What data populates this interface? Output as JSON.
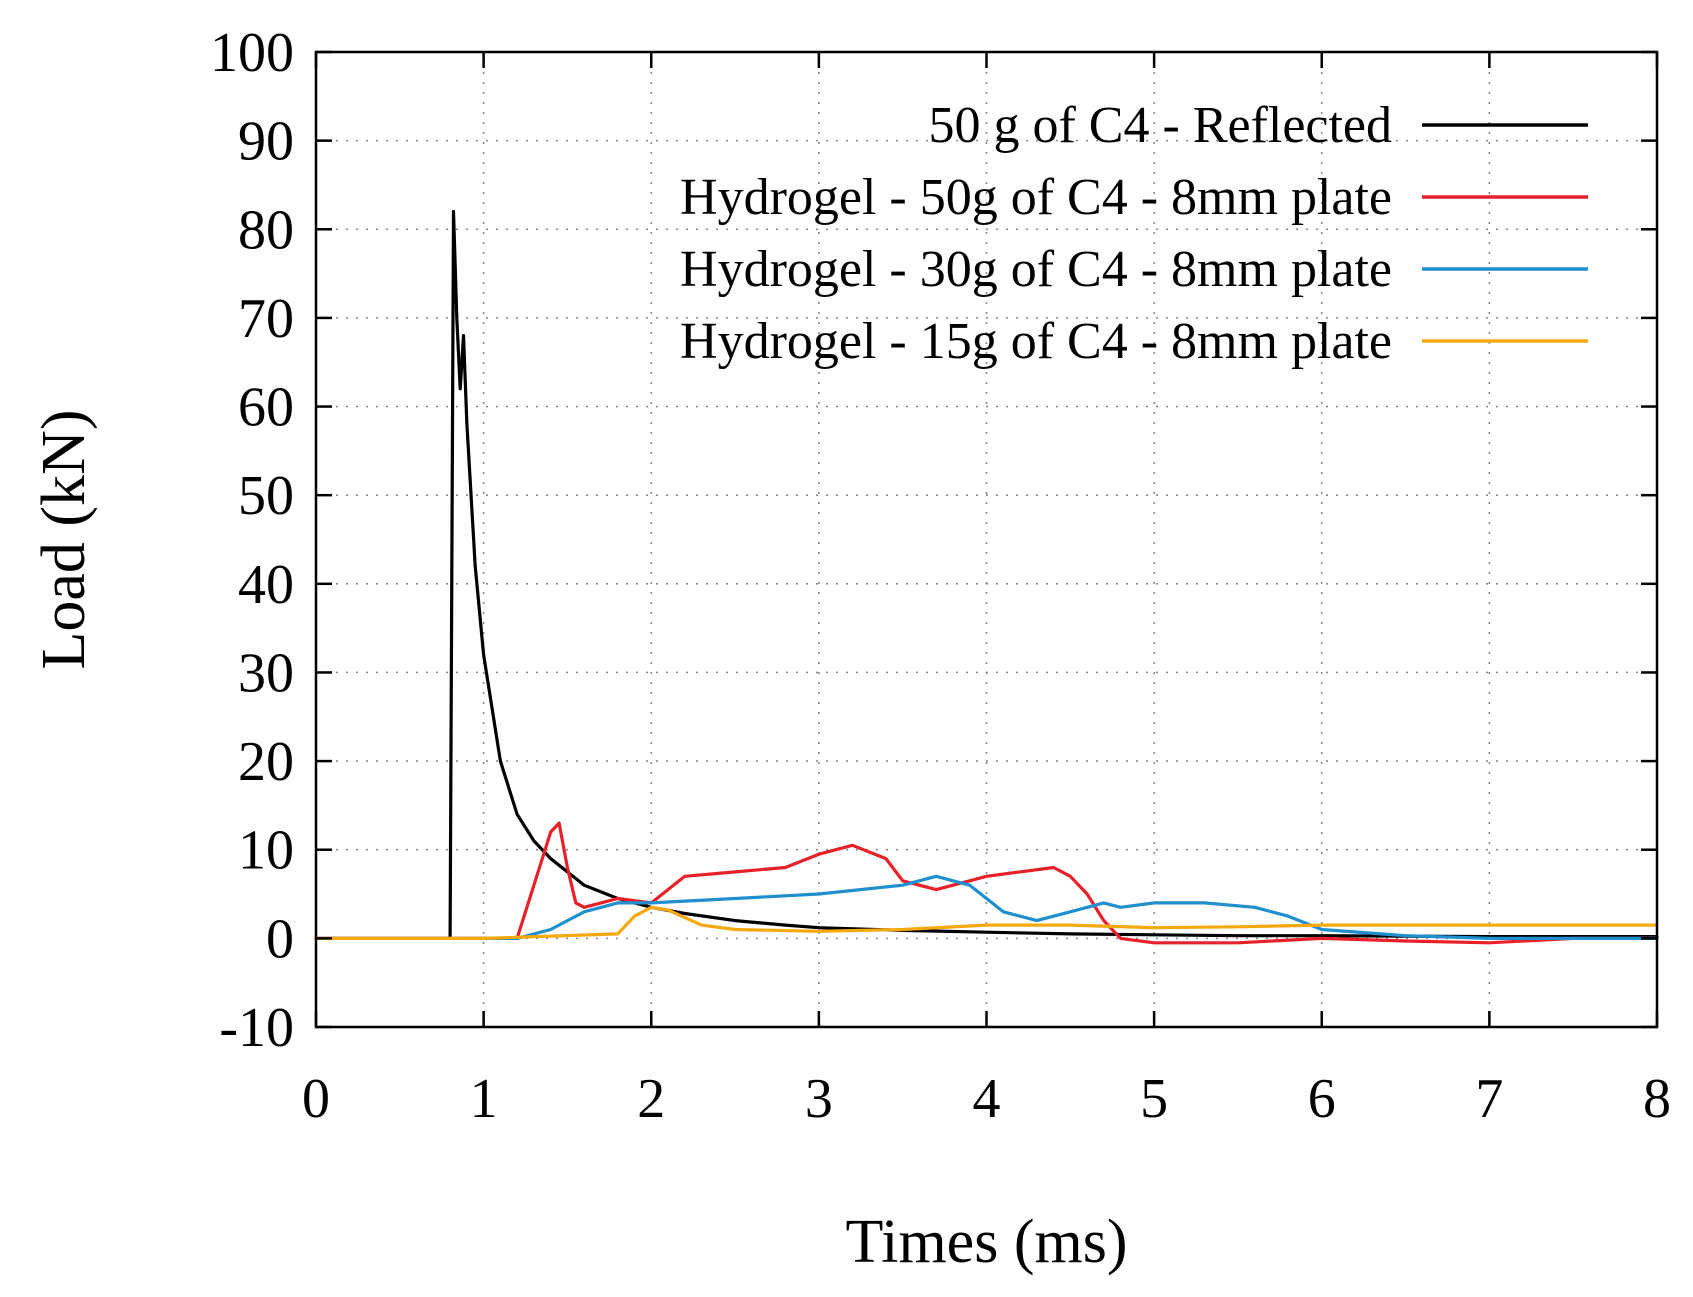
{
  "chart_data": {
    "type": "line",
    "title": "",
    "xlabel": "Times (ms)",
    "ylabel": "Load (kN)",
    "xlim": [
      0,
      8
    ],
    "ylim": [
      -10,
      100
    ],
    "xticks": [
      0,
      1,
      2,
      3,
      4,
      5,
      6,
      7,
      8
    ],
    "yticks": [
      -10,
      0,
      10,
      20,
      30,
      40,
      50,
      60,
      70,
      80,
      90,
      100
    ],
    "grid": true,
    "legend_position": "top-right",
    "series": [
      {
        "name": "50 g of C4 - Reflected",
        "color": "#000000",
        "x": [
          0,
          0.8,
          0.82,
          0.84,
          0.86,
          0.88,
          0.9,
          0.95,
          1.0,
          1.05,
          1.1,
          1.2,
          1.3,
          1.4,
          1.5,
          1.6,
          1.8,
          2.0,
          2.2,
          2.5,
          2.8,
          3.0,
          3.5,
          4.0,
          4.5,
          5.0,
          5.5,
          6.0,
          7.0,
          8.0
        ],
        "y": [
          0,
          0,
          82,
          70,
          62,
          68,
          58,
          42,
          32,
          26,
          20,
          14,
          11,
          9,
          7.5,
          6,
          4.5,
          3.5,
          2.8,
          2,
          1.5,
          1.2,
          0.9,
          0.7,
          0.5,
          0.4,
          0.3,
          0.3,
          0.2,
          0.2
        ]
      },
      {
        "name": "Hydrogel - 50g of C4 - 8mm plate",
        "color": "#e8202a",
        "x": [
          0,
          1.2,
          1.3,
          1.4,
          1.45,
          1.5,
          1.55,
          1.6,
          1.7,
          1.8,
          2.0,
          2.2,
          2.5,
          2.8,
          3.0,
          3.2,
          3.4,
          3.5,
          3.7,
          3.9,
          4.0,
          4.2,
          4.4,
          4.5,
          4.6,
          4.7,
          4.8,
          5.0,
          5.2,
          5.5,
          6.0,
          6.5,
          7.0,
          7.5,
          8.0
        ],
        "y": [
          0,
          0,
          6,
          12,
          13,
          8,
          4,
          3.5,
          4,
          4.5,
          4,
          7,
          7.5,
          8,
          9.5,
          10.5,
          9,
          6.5,
          5.5,
          6.5,
          7,
          7.5,
          8,
          7,
          5,
          2,
          0,
          -0.5,
          -0.5,
          -0.5,
          0,
          -0.3,
          -0.5,
          0,
          0
        ]
      },
      {
        "name": "Hydrogel - 30g of C4 - 8mm plate",
        "color": "#1f8fd0",
        "x": [
          0,
          1.2,
          1.4,
          1.6,
          1.8,
          2.0,
          2.5,
          3.0,
          3.5,
          3.7,
          3.9,
          4.1,
          4.3,
          4.5,
          4.7,
          4.8,
          5.0,
          5.3,
          5.6,
          5.8,
          6.0,
          6.5,
          7.0,
          7.5,
          8.0
        ],
        "y": [
          0,
          0,
          1,
          3,
          4,
          4,
          4.5,
          5,
          6,
          7,
          6,
          3,
          2,
          3,
          4,
          3.5,
          4,
          4,
          3.5,
          2.5,
          1,
          0.3,
          0,
          0,
          0
        ]
      },
      {
        "name": "Hydrogel - 15g of C4 - 8mm plate",
        "color": "#f5a90f",
        "x": [
          0,
          1.0,
          1.8,
          1.9,
          2.0,
          2.1,
          2.3,
          2.5,
          3.0,
          3.5,
          4.0,
          4.5,
          5.0,
          5.5,
          6.0,
          6.5,
          7.0,
          7.5,
          8.0
        ],
        "y": [
          0,
          0,
          0.5,
          2.5,
          3.5,
          3.2,
          1.5,
          1,
          0.8,
          1,
          1.5,
          1.5,
          1.2,
          1.3,
          1.5,
          1.5,
          1.5,
          1.5,
          1.5
        ]
      }
    ]
  }
}
